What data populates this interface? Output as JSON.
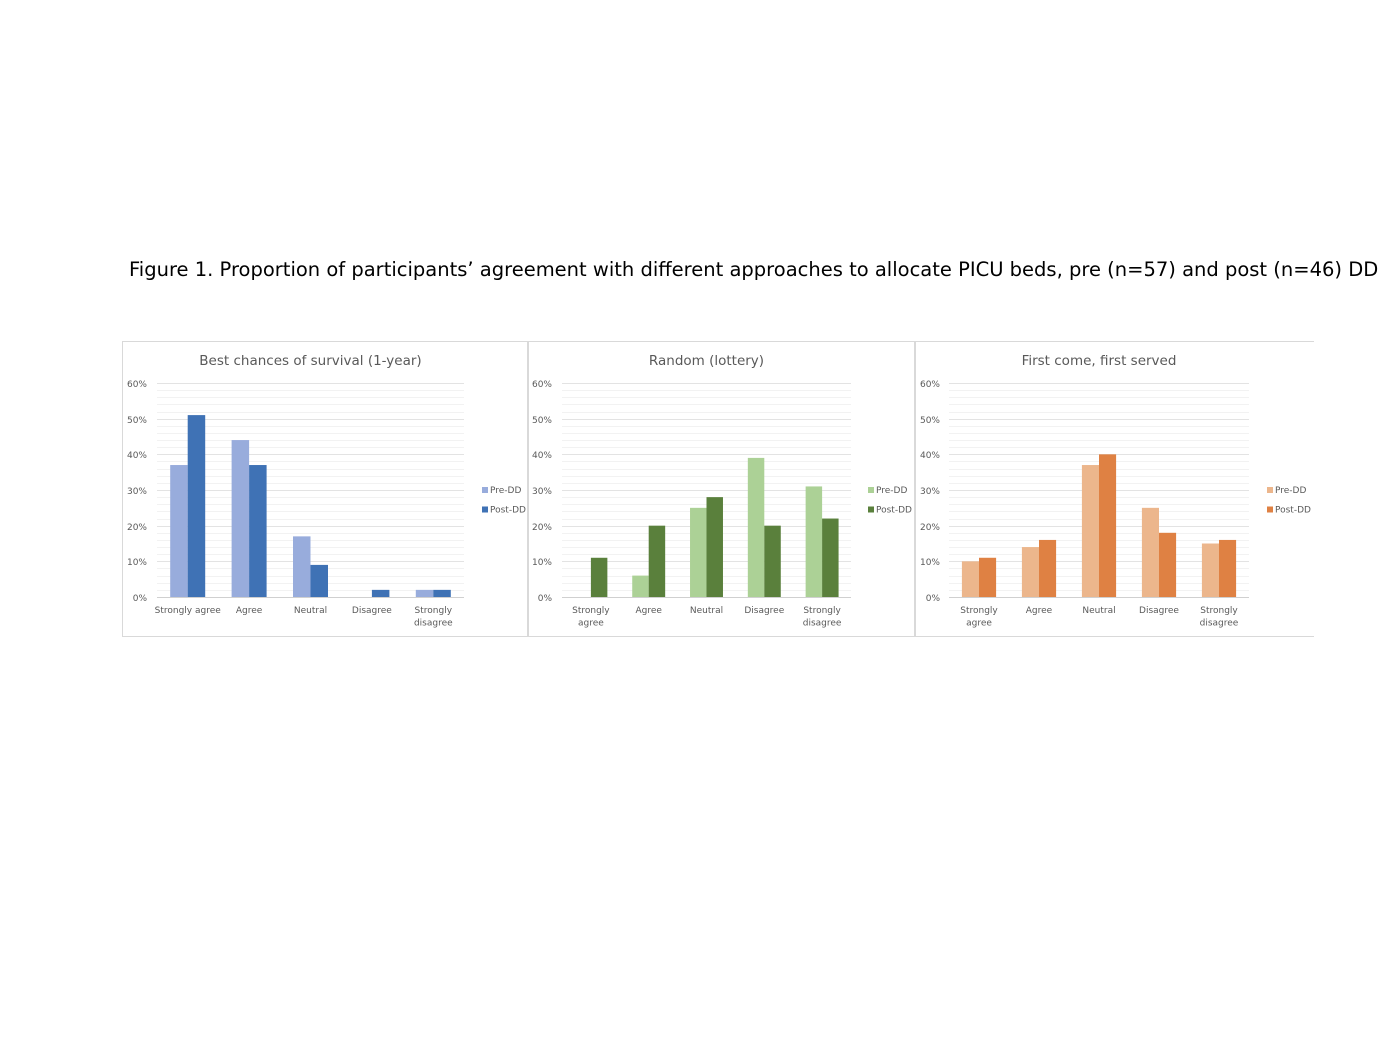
{
  "caption": "Figure 1. Proportion of participants’ agreement with different approaches to allocate PICU beds, pre (n=57) and post (n=46) DD",
  "chart_data": [
    {
      "type": "bar",
      "title": "Best chances of survival (1-year)",
      "categories": [
        "Strongly agree",
        "Agree",
        "Neutral",
        "Disagree",
        "Strongly disagree"
      ],
      "category_lines": [
        [
          "Strongly agree"
        ],
        [
          "Agree"
        ],
        [
          "Neutral"
        ],
        [
          "Disagree"
        ],
        [
          "Strongly",
          "disagree"
        ]
      ],
      "y_ticks": [
        "0%",
        "10%",
        "20%",
        "30%",
        "40%",
        "50%",
        "60%"
      ],
      "ylim": [
        0,
        60
      ],
      "grid": true,
      "legend_position": "right",
      "series": [
        {
          "name": "Pre-DD",
          "color": "#98acdc",
          "values": [
            37,
            44,
            17,
            0,
            2
          ]
        },
        {
          "name": "Post-DD",
          "color": "#3f72b5",
          "values": [
            51,
            37,
            9,
            2,
            2
          ]
        }
      ]
    },
    {
      "type": "bar",
      "title": "Random (lottery)",
      "categories": [
        "Strongly agree",
        "Agree",
        "Neutral",
        "Disagree",
        "Strongly disagree"
      ],
      "category_lines": [
        [
          "Strongly",
          "agree"
        ],
        [
          "Agree"
        ],
        [
          "Neutral"
        ],
        [
          "Disagree"
        ],
        [
          "Strongly",
          "disagree"
        ]
      ],
      "y_ticks": [
        "0%",
        "10%",
        "20%",
        "30%",
        "40%",
        "50%",
        "60%"
      ],
      "ylim": [
        0,
        60
      ],
      "grid": true,
      "legend_position": "right",
      "series": [
        {
          "name": "Pre-DD",
          "color": "#acd196",
          "values": [
            0,
            6,
            25,
            39,
            31
          ]
        },
        {
          "name": "Post-DD",
          "color": "#5a803c",
          "values": [
            11,
            20,
            28,
            20,
            22
          ]
        }
      ]
    },
    {
      "type": "bar",
      "title": "First come, first served",
      "categories": [
        "Strongly agree",
        "Agree",
        "Neutral",
        "Disagree",
        "Strongly disagree"
      ],
      "category_lines": [
        [
          "Strongly",
          "agree"
        ],
        [
          "Agree"
        ],
        [
          "Neutral"
        ],
        [
          "Disagree"
        ],
        [
          "Strongly",
          "disagree"
        ]
      ],
      "y_ticks": [
        "0%",
        "10%",
        "20%",
        "30%",
        "40%",
        "50%",
        "60%"
      ],
      "ylim": [
        0,
        60
      ],
      "grid": true,
      "legend_position": "right",
      "series": [
        {
          "name": "Pre-DD",
          "color": "#ecb68c",
          "values": [
            10,
            14,
            37,
            25,
            15
          ]
        },
        {
          "name": "Post-DD",
          "color": "#df8143",
          "values": [
            11,
            16,
            40,
            18,
            16
          ]
        }
      ]
    }
  ]
}
